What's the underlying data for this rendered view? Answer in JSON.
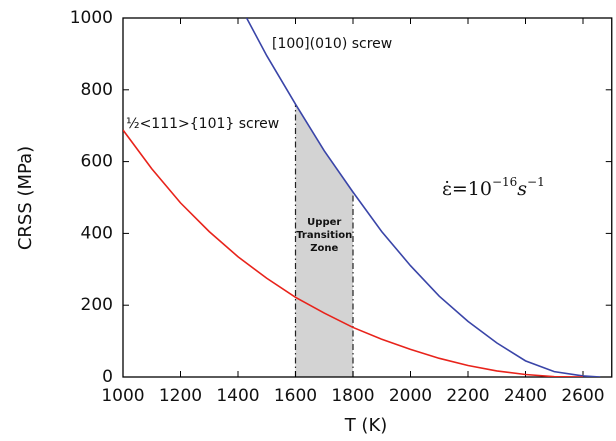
{
  "chart_data": {
    "type": "line",
    "x_label": "T (K)",
    "y_label": "CRSS (MPa)",
    "xlim": [
      1000,
      2700
    ],
    "xticks": [
      1000,
      1200,
      1400,
      1600,
      1800,
      2000,
      2200,
      2400,
      2600
    ],
    "ylim": [
      0,
      1000
    ],
    "yticks": [
      0,
      200,
      400,
      600,
      800,
      1000
    ],
    "grid": false,
    "series": [
      {
        "name": "[100](010) screw",
        "color": "#3a45a8",
        "x": [
          1430,
          1500,
          1600,
          1700,
          1800,
          1900,
          2000,
          2100,
          2200,
          2300,
          2400,
          2500,
          2600,
          2660
        ],
        "values": [
          1000,
          895,
          760,
          630,
          515,
          405,
          310,
          225,
          155,
          95,
          45,
          15,
          3,
          0
        ]
      },
      {
        "name": "½<111>{101} screw",
        "color": "#e8231b",
        "x": [
          1000,
          1100,
          1200,
          1300,
          1400,
          1500,
          1600,
          1700,
          1800,
          1900,
          2000,
          2100,
          2200,
          2300,
          2400,
          2500,
          2600
        ],
        "values": [
          688,
          580,
          485,
          405,
          335,
          275,
          222,
          178,
          138,
          105,
          77,
          52,
          32,
          17,
          7,
          1,
          0
        ]
      }
    ],
    "shaded_region": {
      "x": [
        1600,
        1800
      ],
      "label": [
        "Upper",
        "Transition",
        "Zone"
      ],
      "color": "#d3d3d3"
    },
    "rate_annotation": {
      "base": "ε̇=10",
      "exponent": "−16",
      "unit": "s",
      "unit_exponent": "−1"
    }
  }
}
